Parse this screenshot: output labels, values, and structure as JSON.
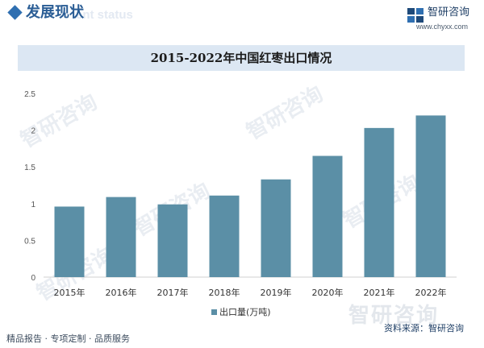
{
  "header": {
    "section_title": "发展现状",
    "section_ghost": "ent status",
    "brand_name": "智研咨询",
    "brand_url": "www.chyxx.com"
  },
  "watermark": {
    "text": "智研咨询"
  },
  "chart_data": {
    "type": "bar",
    "title": "2015-2022年中国红枣出口情况",
    "categories": [
      "2015年",
      "2016年",
      "2017年",
      "2018年",
      "2019年",
      "2020年",
      "2021年",
      "2022年"
    ],
    "series": [
      {
        "name": "出口量(万吨)",
        "values": [
          0.96,
          1.09,
          0.99,
          1.11,
          1.33,
          1.65,
          2.03,
          2.2
        ],
        "color": "#5b8fa6"
      }
    ],
    "ylim": [
      0,
      2.5
    ],
    "yticks": [
      "0",
      "0.5",
      "1",
      "1.5",
      "2",
      "2.5"
    ],
    "grid": false,
    "legend": "bottom-center",
    "xlabel": "",
    "ylabel": ""
  },
  "footer": {
    "left": "精品报告 · 专项定制 · 品质服务",
    "source": "资料来源：智研咨询"
  }
}
